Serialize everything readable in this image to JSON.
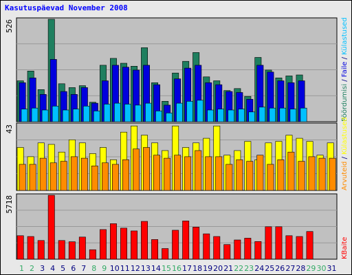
{
  "chart_data": {
    "title": "Kasutuspäevad November 2008",
    "type": "bar",
    "x": [
      "1",
      "2",
      "3",
      "4",
      "5",
      "6",
      "7",
      "8",
      "9",
      "10",
      "11",
      "12",
      "13",
      "14",
      "15",
      "16",
      "17",
      "18",
      "19",
      "20",
      "21",
      "22",
      "23",
      "24",
      "25",
      "26",
      "27",
      "28",
      "29",
      "30",
      "31"
    ],
    "weekend_days": [
      "1",
      "2",
      "8",
      "9",
      "15",
      "16",
      "22",
      "23",
      "29",
      "30"
    ],
    "panels": [
      {
        "name": "top",
        "ylim": [
          0,
          526
        ],
        "ymax_label": "526",
        "right_labels": [
          "Pöördumisi",
          "Faile",
          "Külastused"
        ],
        "series": [
          {
            "name": "Pöördumisi",
            "color": "#1f7f5f",
            "values": [
              210,
              260,
              165,
              526,
              195,
              175,
              185,
              100,
              290,
              325,
              300,
              285,
              380,
              200,
              105,
              250,
              310,
              355,
              230,
              210,
              160,
              170,
              130,
              330,
              265,
              225,
              235,
              240,
              0,
              0,
              0
            ]
          },
          {
            "name": "Faile",
            "color": "#0000dd",
            "values": [
              200,
              225,
              140,
              320,
              155,
              140,
              175,
              95,
              210,
              290,
              280,
              265,
              290,
              190,
              85,
              220,
              275,
              290,
              200,
              190,
              155,
              150,
              115,
              290,
              255,
              210,
              200,
              210,
              0,
              0,
              0
            ]
          },
          {
            "name": "Külastused",
            "color": "#00c0ff",
            "values": [
              65,
              70,
              60,
              80,
              60,
              65,
              80,
              55,
              90,
              95,
              90,
              85,
              95,
              55,
              45,
              95,
              105,
              110,
              60,
              65,
              60,
              65,
              50,
              75,
              70,
              70,
              65,
              70,
              0,
              0,
              0
            ]
          }
        ]
      },
      {
        "name": "middle",
        "ylim": [
          0,
          43
        ],
        "ymax_label": "43",
        "right_labels": [
          "Arvuteid",
          "Külastused"
        ],
        "series": [
          {
            "name": "Külastused",
            "color": "#ffff00",
            "values": [
              28,
              22,
              31,
              30,
              25,
              33,
              31,
              24,
              28,
              20,
              38,
              42,
              36,
              31,
              26,
              42,
              28,
              31,
              34,
              42,
              23,
              26,
              32,
              20,
              31,
              32,
              36,
              34,
              32,
              23,
              31
            ]
          },
          {
            "name": "Arvuteid",
            "color": "#ff8c00",
            "values": [
              17,
              17,
              21,
              18,
              19,
              22,
              21,
              16,
              18,
              17,
              20,
              27,
              28,
              23,
              21,
              23,
              22,
              26,
              22,
              22,
              17,
              20,
              19,
              23,
              17,
              20,
              25,
              19,
              22,
              21,
              21
            ]
          }
        ]
      },
      {
        "name": "bottom",
        "ylim": [
          0,
          5718
        ],
        "ymax_label": "5718",
        "right_labels": [
          "KBaite"
        ],
        "series": [
          {
            "name": "KBaite",
            "color": "#ff0000",
            "values": [
              2100,
              2030,
              1670,
              5718,
              1670,
              1560,
              1980,
              850,
              2650,
              3180,
              2780,
              2530,
              3380,
              1760,
              950,
              2590,
              3420,
              2870,
              2270,
              2030,
              1310,
              1720,
              1880,
              1580,
              2900,
              2900,
              2100,
              2030,
              2480,
              0,
              0
            ]
          }
        ]
      }
    ]
  },
  "colors": {
    "background": "#e8e8e8",
    "plot_background": "#c0c0c0",
    "title": "#0000ff",
    "weekday_label": "#008800",
    "weekend_label": "#33aa66",
    "normal_label": "#000080"
  }
}
